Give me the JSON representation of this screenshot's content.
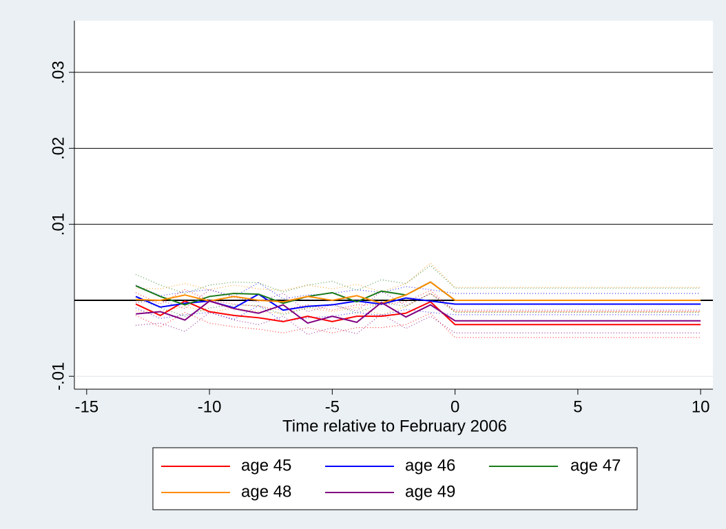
{
  "chart_data": {
    "type": "line",
    "x_label": "Time relative to February 2006",
    "x": [
      -13,
      -12,
      -11,
      -10,
      -9,
      -8,
      -7,
      -6,
      -5,
      -4,
      -3,
      -2,
      -1,
      0,
      1,
      2,
      3,
      4,
      5,
      6,
      7,
      8,
      9,
      10
    ],
    "xlim": [
      -15.5,
      10.5
    ],
    "xticks": [
      -15,
      -10,
      -5,
      0,
      5,
      10
    ],
    "ylim": [
      -0.0117,
      0.0368
    ],
    "yticks": [
      {
        "value": -0.01,
        "label": "-.01"
      },
      {
        "value": 0.01,
        "label": ".01"
      },
      {
        "value": 0.02,
        "label": ".02"
      },
      {
        "value": 0.03,
        "label": ".03"
      }
    ],
    "yline": 0,
    "grid": true,
    "series": [
      {
        "name": "age 45",
        "color": "#ff0000",
        "values": [
          -0.0005,
          -0.002,
          -0.0001,
          -0.0015,
          -0.002,
          -0.0023,
          -0.0028,
          -0.0021,
          -0.0028,
          -0.0021,
          -0.0021,
          -0.0017,
          -0.0002,
          -0.0032,
          -0.0032,
          -0.0032,
          -0.0032,
          -0.0032,
          -0.0032,
          -0.0032,
          -0.0032,
          -0.0032,
          -0.0032,
          -0.0032
        ],
        "ci_upper": [
          0.001,
          -0.0005,
          0.0014,
          0,
          -0.0005,
          -0.0008,
          -0.0013,
          -0.0006,
          -0.0013,
          -0.0006,
          -0.0006,
          -0.0002,
          0.0013,
          -0.0015,
          -0.0015,
          -0.0015,
          -0.0015,
          -0.0015,
          -0.0015,
          -0.0015,
          -0.0015,
          -0.0015,
          -0.0015,
          -0.0015
        ],
        "ci_lower": [
          -0.002,
          -0.0035,
          -0.0016,
          -0.003,
          -0.0035,
          -0.0038,
          -0.0043,
          -0.0036,
          -0.0043,
          -0.0036,
          -0.0036,
          -0.0032,
          -0.0017,
          -0.0049,
          -0.0049,
          -0.0049,
          -0.0049,
          -0.0049,
          -0.0049,
          -0.0049,
          -0.0049,
          -0.0049,
          -0.0049,
          -0.0049
        ]
      },
      {
        "name": "age 46",
        "color": "#0000ff",
        "values": [
          0.0005,
          -0.0009,
          -0.0004,
          -0.0001,
          -0.001,
          0.0008,
          -0.0013,
          -0.0008,
          -0.0006,
          -0.0001,
          -0.0005,
          0.0003,
          -0.0001,
          -0.0005,
          -0.0005,
          -0.0005,
          -0.0005,
          -0.0005,
          -0.0005,
          -0.0005,
          -0.0005,
          -0.0005,
          -0.0005,
          -0.0005
        ],
        "ci_upper": [
          0.002,
          0.0006,
          0.0011,
          0.0014,
          0.0005,
          0.0023,
          0.0002,
          0.0007,
          0.0009,
          0.0014,
          0.001,
          0.0018,
          0.0014,
          0.0009,
          0.0009,
          0.0009,
          0.0009,
          0.0009,
          0.0009,
          0.0009,
          0.0009,
          0.0009,
          0.0009,
          0.0009
        ],
        "ci_lower": [
          -0.001,
          -0.0024,
          -0.0019,
          -0.0016,
          -0.0025,
          -0.0007,
          -0.0028,
          -0.0023,
          -0.0021,
          -0.0016,
          -0.002,
          -0.0012,
          -0.0016,
          -0.0019,
          -0.0019,
          -0.0019,
          -0.0019,
          -0.0019,
          -0.0019,
          -0.0019,
          -0.0019,
          -0.0019,
          -0.0019,
          -0.0019
        ]
      },
      {
        "name": "age 47",
        "color": "#1a7a1a",
        "values": [
          0.0019,
          0.0005,
          -0.0006,
          0.0005,
          0.0009,
          0.0008,
          -0.0004,
          0.0005,
          0.001,
          -0.0002,
          0.0012,
          0.0007,
          0.0024,
          0,
          0,
          0,
          0,
          0,
          0,
          0,
          0,
          0,
          0,
          0
        ],
        "ci_upper": [
          0.0034,
          0.002,
          0.0009,
          0.002,
          0.0024,
          0.0023,
          0.0011,
          0.002,
          0.0025,
          0.0013,
          0.0027,
          0.0022,
          0.0046,
          0.0016,
          0.0016,
          0.0016,
          0.0016,
          0.0016,
          0.0016,
          0.0016,
          0.0016,
          0.0016,
          0.0016,
          0.0016
        ],
        "ci_lower": [
          0.0004,
          -0.001,
          -0.0021,
          -0.001,
          -0.0006,
          -0.0007,
          -0.0019,
          -0.001,
          -0.0005,
          -0.0017,
          -0.0003,
          -0.0008,
          0.0009,
          -0.0016,
          -0.0016,
          -0.0016,
          -0.0016,
          -0.0016,
          -0.0016,
          -0.0016,
          -0.0016,
          -0.0016,
          -0.0016,
          -0.0016
        ]
      },
      {
        "name": "age 48",
        "color": "#ff8c00",
        "values": [
          0.0001,
          0,
          0.0007,
          -0.0001,
          0.0005,
          0,
          -0.0002,
          0.0005,
          0,
          0.0006,
          -0.0004,
          0.0007,
          0.0024,
          0,
          0,
          0,
          0,
          0,
          0,
          0,
          0,
          0,
          0,
          0
        ],
        "ci_upper": [
          0.0016,
          0.0015,
          0.0022,
          0.0014,
          0.002,
          0.0015,
          0.0013,
          0.002,
          0.0015,
          0.0021,
          0.0011,
          0.0022,
          0.0049,
          0.0017,
          0.0017,
          0.0017,
          0.0017,
          0.0017,
          0.0017,
          0.0017,
          0.0017,
          0.0017,
          0.0017,
          0.0017
        ],
        "ci_lower": [
          -0.0014,
          -0.0015,
          -0.0008,
          -0.0016,
          -0.001,
          -0.0015,
          -0.0017,
          -0.001,
          -0.0015,
          -0.0009,
          -0.0019,
          -0.0008,
          0.0009,
          -0.0015,
          -0.0015,
          -0.0015,
          -0.0015,
          -0.0015,
          -0.0015,
          -0.0015,
          -0.0015,
          -0.0015,
          -0.0015,
          -0.0015
        ]
      },
      {
        "name": "age 49",
        "color": "#800080",
        "values": [
          -0.0018,
          -0.0015,
          -0.0026,
          -0.0001,
          -0.0011,
          -0.0017,
          -0.0006,
          -0.003,
          -0.0021,
          -0.0029,
          -0.0003,
          -0.0022,
          -0.0006,
          -0.0027,
          -0.0027,
          -0.0027,
          -0.0027,
          -0.0027,
          -0.0027,
          -0.0027,
          -0.0027,
          -0.0027,
          -0.0027,
          -0.0027
        ],
        "ci_upper": [
          -0.0003,
          0,
          -0.0011,
          0.0014,
          0.0004,
          -0.0002,
          0.0009,
          -0.0015,
          -0.0006,
          -0.0014,
          0.0012,
          -0.0007,
          0.0009,
          -0.0013,
          -0.0013,
          -0.0013,
          -0.0013,
          -0.0013,
          -0.0013,
          -0.0013,
          -0.0013,
          -0.0013,
          -0.0013,
          -0.0013
        ],
        "ci_lower": [
          -0.0033,
          -0.003,
          -0.0041,
          -0.0016,
          -0.0026,
          -0.0032,
          -0.0021,
          -0.0045,
          -0.0036,
          -0.0044,
          -0.0018,
          -0.0037,
          -0.0021,
          -0.0043,
          -0.0043,
          -0.0043,
          -0.0043,
          -0.0043,
          -0.0043,
          -0.0043,
          -0.0043,
          -0.0043,
          -0.0043,
          -0.0043
        ]
      }
    ]
  }
}
